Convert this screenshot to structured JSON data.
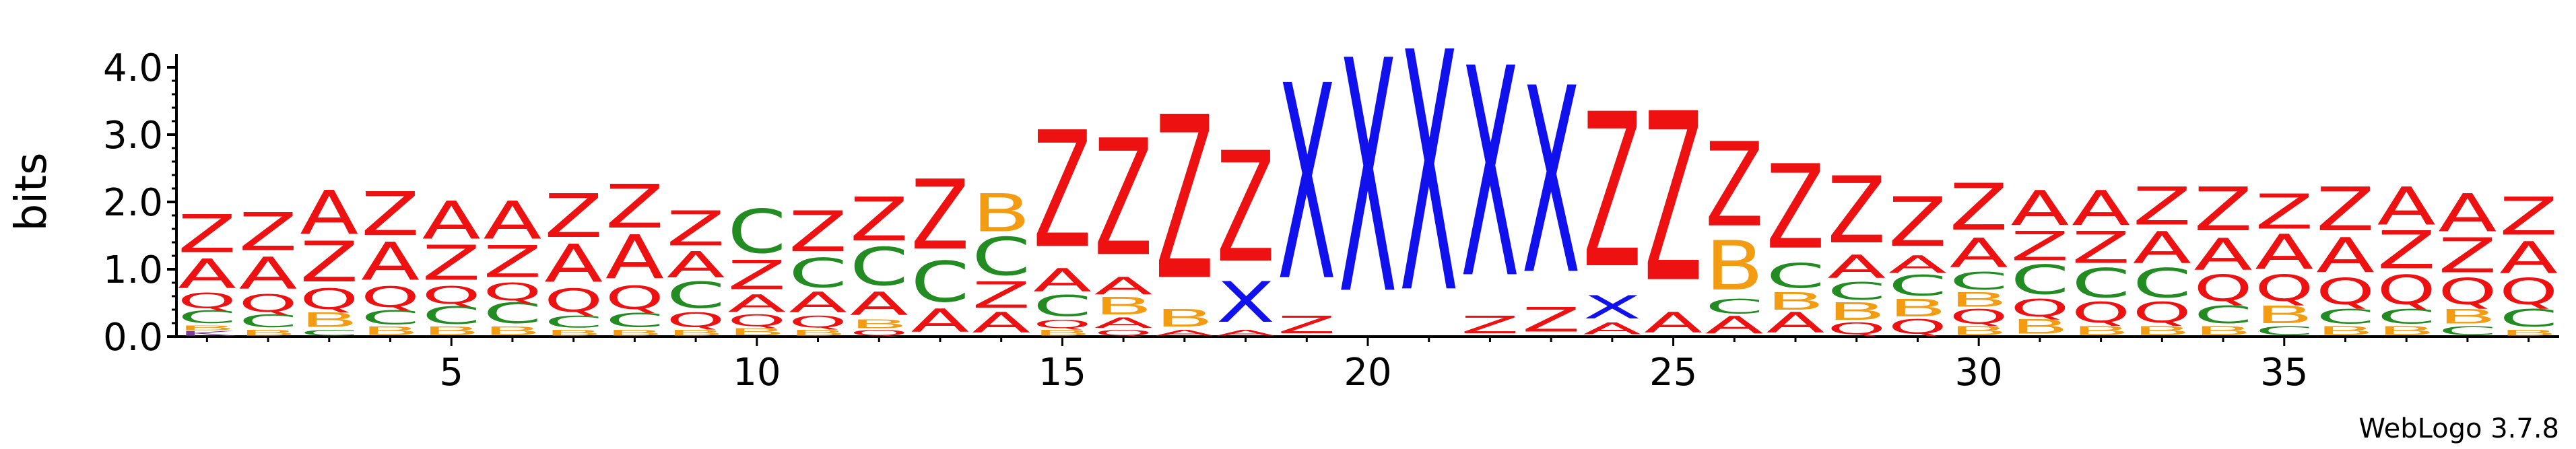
{
  "chart_data": {
    "type": "sequence-logo",
    "ylabel": "bits",
    "ylim": [
      0,
      4.2
    ],
    "yticks": [
      0.0,
      1.0,
      2.0,
      3.0,
      4.0
    ],
    "ytick_labels": [
      "0.0",
      "1.0",
      "2.0",
      "3.0",
      "4.0"
    ],
    "xticks": [
      5,
      10,
      15,
      20,
      25,
      30,
      35
    ],
    "xtick_labels": [
      "5",
      "10",
      "15",
      "20",
      "25",
      "30",
      "35"
    ],
    "num_positions": 39,
    "footer": "WebLogo 3.7.8",
    "colors": {
      "Z": "#ee1111",
      "A": "#ee1111",
      "X": "#1111ee",
      "C": "#228b22",
      "B": "#f39c12",
      "Q": "#ee1111",
      "K": "#7d3c98"
    },
    "positions": [
      {
        "pos": 1,
        "stack": [
          [
            "K",
            0.08
          ],
          [
            "B",
            0.08
          ],
          [
            "C",
            0.22
          ],
          [
            "Q",
            0.26
          ],
          [
            "A",
            0.5
          ],
          [
            "Z",
            0.65
          ]
        ]
      },
      {
        "pos": 2,
        "stack": [
          [
            "B",
            0.1
          ],
          [
            "C",
            0.22
          ],
          [
            "Q",
            0.3
          ],
          [
            "A",
            0.55
          ],
          [
            "Z",
            0.65
          ]
        ]
      },
      {
        "pos": 3,
        "stack": [
          [
            "C",
            0.1
          ],
          [
            "B",
            0.25
          ],
          [
            "Q",
            0.35
          ],
          [
            "Z",
            0.7
          ],
          [
            "A",
            0.75
          ]
        ]
      },
      {
        "pos": 4,
        "stack": [
          [
            "B",
            0.14
          ],
          [
            "C",
            0.24
          ],
          [
            "Q",
            0.35
          ],
          [
            "A",
            0.65
          ],
          [
            "Z",
            0.75
          ]
        ]
      },
      {
        "pos": 5,
        "stack": [
          [
            "B",
            0.14
          ],
          [
            "C",
            0.3
          ],
          [
            "Q",
            0.3
          ],
          [
            "Z",
            0.6
          ],
          [
            "A",
            0.65
          ]
        ]
      },
      {
        "pos": 6,
        "stack": [
          [
            "B",
            0.14
          ],
          [
            "C",
            0.35
          ],
          [
            "Q",
            0.3
          ],
          [
            "Z",
            0.55
          ],
          [
            "A",
            0.65
          ]
        ]
      },
      {
        "pos": 7,
        "stack": [
          [
            "B",
            0.1
          ],
          [
            "C",
            0.2
          ],
          [
            "Q",
            0.4
          ],
          [
            "A",
            0.65
          ],
          [
            "Z",
            0.75
          ]
        ]
      },
      {
        "pos": 8,
        "stack": [
          [
            "B",
            0.1
          ],
          [
            "C",
            0.24
          ],
          [
            "Q",
            0.4
          ],
          [
            "A",
            0.75
          ],
          [
            "Z",
            0.75
          ]
        ]
      },
      {
        "pos": 9,
        "stack": [
          [
            "B",
            0.1
          ],
          [
            "Q",
            0.25
          ],
          [
            "C",
            0.45
          ],
          [
            "A",
            0.45
          ],
          [
            "Z",
            0.6
          ]
        ]
      },
      {
        "pos": 10,
        "stack": [
          [
            "B",
            0.12
          ],
          [
            "Q",
            0.2
          ],
          [
            "A",
            0.3
          ],
          [
            "Z",
            0.5
          ],
          [
            "C",
            0.75
          ]
        ]
      },
      {
        "pos": 11,
        "stack": [
          [
            "B",
            0.1
          ],
          [
            "Q",
            0.2
          ],
          [
            "A",
            0.35
          ],
          [
            "C",
            0.5
          ],
          [
            "Z",
            0.7
          ]
        ]
      },
      {
        "pos": 12,
        "stack": [
          [
            "Q",
            0.1
          ],
          [
            "B",
            0.15
          ],
          [
            "A",
            0.4
          ],
          [
            "C",
            0.65
          ],
          [
            "Z",
            0.75
          ]
        ]
      },
      {
        "pos": 13,
        "stack": [
          [
            "A",
            0.4
          ],
          [
            "C",
            0.7
          ],
          [
            "Z",
            1.2
          ]
        ]
      },
      {
        "pos": 14,
        "stack": [
          [
            "A",
            0.35
          ],
          [
            "Z",
            0.45
          ],
          [
            "C",
            0.65
          ],
          [
            "B",
            0.65
          ]
        ]
      },
      {
        "pos": 15,
        "stack": [
          [
            "B",
            0.1
          ],
          [
            "Q",
            0.14
          ],
          [
            "C",
            0.36
          ],
          [
            "A",
            0.4
          ],
          [
            "Z",
            2.0
          ]
        ]
      },
      {
        "pos": 16,
        "stack": [
          [
            "Q",
            0.1
          ],
          [
            "A",
            0.18
          ],
          [
            "B",
            0.3
          ],
          [
            "A",
            0.3
          ],
          [
            "Z",
            2.0
          ]
        ]
      },
      {
        "pos": 17,
        "stack": [
          [
            "A",
            0.1
          ],
          [
            "B",
            0.3
          ],
          [
            "Z",
            2.8
          ]
        ]
      },
      {
        "pos": 18,
        "stack": [
          [
            "A",
            0.1
          ],
          [
            "X",
            0.7
          ],
          [
            "Z",
            1.9
          ]
        ]
      },
      {
        "pos": 19,
        "stack": [
          [
            "Z",
            0.3
          ],
          [
            "X",
            3.35
          ]
        ]
      },
      {
        "pos": 20,
        "stack": [
          [
            "X",
            4.0
          ]
        ]
      },
      {
        "pos": 21,
        "stack": [
          [
            "X",
            4.12
          ]
        ]
      },
      {
        "pos": 22,
        "stack": [
          [
            "Z",
            0.3
          ],
          [
            "X",
            3.6
          ]
        ]
      },
      {
        "pos": 23,
        "stack": [
          [
            "Z",
            0.42
          ],
          [
            "X",
            3.2
          ]
        ]
      },
      {
        "pos": 24,
        "stack": [
          [
            "A",
            0.2
          ],
          [
            "X",
            0.4
          ],
          [
            "Z",
            2.65
          ]
        ]
      },
      {
        "pos": 25,
        "stack": [
          [
            "A",
            0.35
          ],
          [
            "Z",
            2.9
          ]
        ]
      },
      {
        "pos": 26,
        "stack": [
          [
            "A",
            0.3
          ],
          [
            "C",
            0.25
          ],
          [
            "B",
            0.85
          ],
          [
            "Z",
            1.45
          ]
        ]
      },
      {
        "pos": 27,
        "stack": [
          [
            "A",
            0.35
          ],
          [
            "B",
            0.3
          ],
          [
            "C",
            0.42
          ],
          [
            "Z",
            1.45
          ]
        ]
      },
      {
        "pos": 28,
        "stack": [
          [
            "Q",
            0.2
          ],
          [
            "B",
            0.3
          ],
          [
            "C",
            0.3
          ],
          [
            "A",
            0.4
          ],
          [
            "Z",
            1.15
          ]
        ]
      },
      {
        "pos": 29,
        "stack": [
          [
            "Q",
            0.25
          ],
          [
            "B",
            0.3
          ],
          [
            "C",
            0.35
          ],
          [
            "A",
            0.3
          ],
          [
            "Z",
            0.85
          ]
        ]
      },
      {
        "pos": 30,
        "stack": [
          [
            "B",
            0.15
          ],
          [
            "Q",
            0.25
          ],
          [
            "B",
            0.25
          ],
          [
            "C",
            0.3
          ],
          [
            "A",
            0.5
          ],
          [
            "Z",
            0.8
          ]
        ]
      },
      {
        "pos": 31,
        "stack": [
          [
            "B",
            0.25
          ],
          [
            "Q",
            0.3
          ],
          [
            "C",
            0.5
          ],
          [
            "Z",
            0.5
          ],
          [
            "A",
            0.6
          ]
        ]
      },
      {
        "pos": 32,
        "stack": [
          [
            "B",
            0.15
          ],
          [
            "Q",
            0.35
          ],
          [
            "C",
            0.5
          ],
          [
            "Z",
            0.55
          ],
          [
            "A",
            0.6
          ]
        ]
      },
      {
        "pos": 33,
        "stack": [
          [
            "B",
            0.15
          ],
          [
            "Q",
            0.35
          ],
          [
            "C",
            0.5
          ],
          [
            "A",
            0.55
          ],
          [
            "Z",
            0.65
          ]
        ]
      },
      {
        "pos": 34,
        "stack": [
          [
            "B",
            0.15
          ],
          [
            "C",
            0.3
          ],
          [
            "Q",
            0.45
          ],
          [
            "A",
            0.55
          ],
          [
            "Z",
            0.75
          ]
        ]
      },
      {
        "pos": 35,
        "stack": [
          [
            "C",
            0.15
          ],
          [
            "B",
            0.3
          ],
          [
            "Q",
            0.45
          ],
          [
            "A",
            0.6
          ],
          [
            "Z",
            0.6
          ]
        ]
      },
      {
        "pos": 36,
        "stack": [
          [
            "B",
            0.15
          ],
          [
            "C",
            0.25
          ],
          [
            "Q",
            0.45
          ],
          [
            "A",
            0.6
          ],
          [
            "Z",
            0.75
          ]
        ]
      },
      {
        "pos": 37,
        "stack": [
          [
            "B",
            0.15
          ],
          [
            "C",
            0.25
          ],
          [
            "Q",
            0.5
          ],
          [
            "Z",
            0.65
          ],
          [
            "A",
            0.65
          ]
        ]
      },
      {
        "pos": 38,
        "stack": [
          [
            "C",
            0.15
          ],
          [
            "B",
            0.25
          ],
          [
            "Q",
            0.45
          ],
          [
            "Z",
            0.6
          ],
          [
            "A",
            0.65
          ]
        ]
      },
      {
        "pos": 39,
        "stack": [
          [
            "B",
            0.1
          ],
          [
            "C",
            0.3
          ],
          [
            "Q",
            0.45
          ],
          [
            "A",
            0.55
          ],
          [
            "Z",
            0.65
          ]
        ]
      }
    ]
  }
}
